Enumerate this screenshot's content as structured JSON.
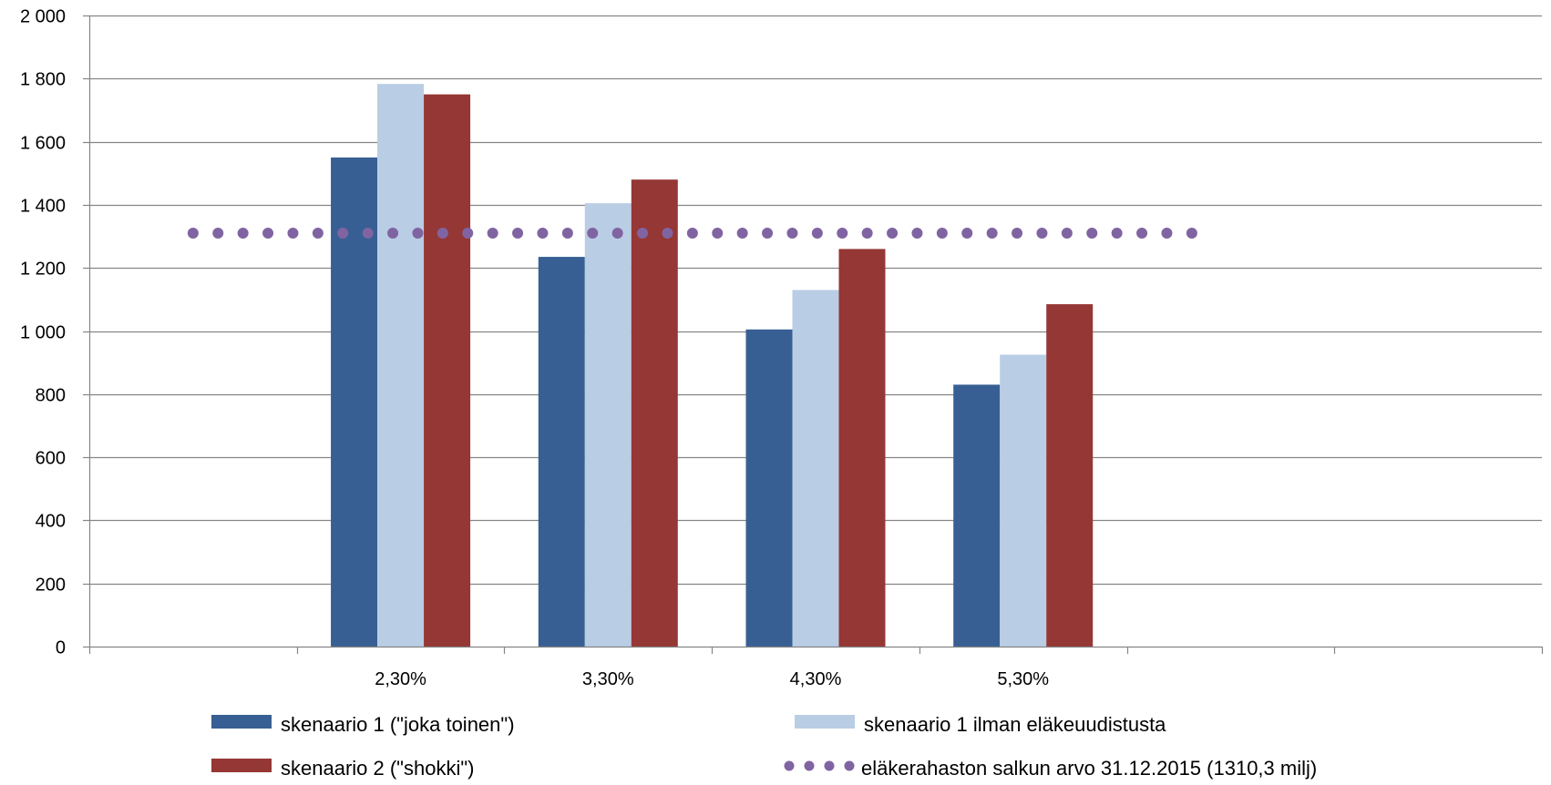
{
  "chart_data": {
    "type": "bar",
    "title": "",
    "xlabel": "",
    "ylabel": "",
    "categories": [
      "",
      "2,30%",
      "3,30%",
      "4,30%",
      "5,30%",
      "",
      ""
    ],
    "series": [
      {
        "name": "skenaario 1 (\"joka toinen\")",
        "color": "#375f93",
        "values": [
          null,
          1550,
          1235,
          1005,
          830,
          null,
          null
        ]
      },
      {
        "name": "skenaario 1 ilman eläkeuudistusta",
        "color": "#b9cde5",
        "values": [
          null,
          1783,
          1405,
          1130,
          925,
          null,
          null
        ]
      },
      {
        "name": "skenaario 2 (\"shokki\")",
        "color": "#953735",
        "values": [
          null,
          1750,
          1480,
          1260,
          1085,
          null,
          null
        ]
      }
    ],
    "reference_line": {
      "name": "eläkerahaston salkun arvo 31.12.2015 (1310,3 milj)",
      "value": 1310.3,
      "color": "#8064a2",
      "style": "dotted",
      "x_start": 0.5,
      "x_end": 5.4
    },
    "ylim": [
      0,
      2000
    ],
    "yticks": [
      0,
      200,
      400,
      600,
      800,
      1000,
      1200,
      1400,
      1600,
      1800,
      2000
    ],
    "ytick_labels": [
      "0",
      "200",
      "400",
      "600",
      "800",
      "1 000",
      "1 200",
      "1 400",
      "1 600",
      "1 800",
      "2 000"
    ],
    "grid": true,
    "legend_position": "bottom"
  }
}
